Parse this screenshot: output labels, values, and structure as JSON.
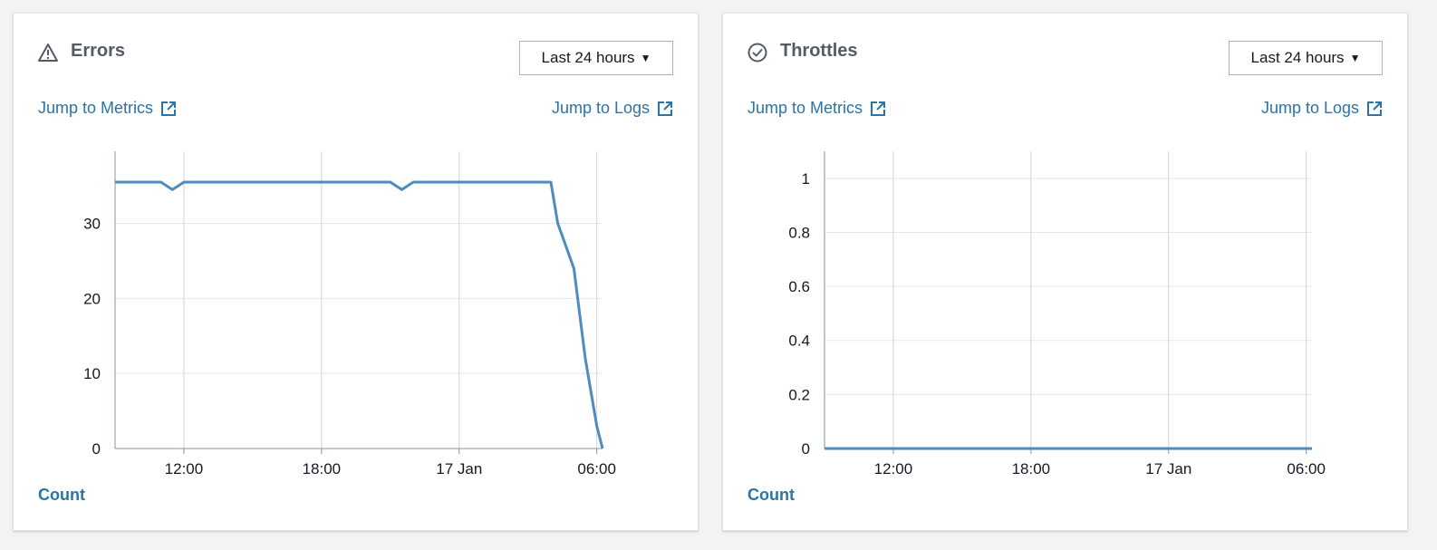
{
  "panels": [
    {
      "title": "Errors",
      "icon": "warning-icon",
      "range_label": "Last 24 hours",
      "jump_metrics": "Jump to Metrics",
      "jump_logs": "Jump to Logs",
      "legend": "Count"
    },
    {
      "title": "Throttles",
      "icon": "check-circle-icon",
      "range_label": "Last 24 hours",
      "jump_metrics": "Jump to Metrics",
      "jump_logs": "Jump to Logs",
      "legend": "Count"
    }
  ],
  "colors": {
    "line": "#4e8bbf",
    "link": "#2a74a8",
    "grid": "#cfd4d6"
  },
  "chart_data": [
    {
      "type": "line",
      "x_ticks": [
        "12:00",
        "18:00",
        "17 Jan",
        "06:00"
      ],
      "y_ticks": [
        "0",
        "10",
        "20",
        "30"
      ],
      "ylim": [
        0,
        36
      ],
      "grid": true,
      "series": [
        {
          "name": "Count",
          "x": [
            0,
            2,
            2.5,
            3,
            12,
            12.5,
            13,
            19,
            19.3,
            20,
            20.5,
            21,
            21.25
          ],
          "y": [
            35.5,
            35.5,
            34.5,
            35.5,
            35.5,
            34.5,
            35.5,
            35.5,
            30,
            24,
            12,
            3,
            0
          ]
        }
      ]
    },
    {
      "type": "line",
      "x_ticks": [
        "12:00",
        "18:00",
        "17 Jan",
        "06:00"
      ],
      "y_ticks": [
        "0",
        "0.2",
        "0.4",
        "0.6",
        "0.8",
        "1"
      ],
      "ylim": [
        0,
        1
      ],
      "grid": true,
      "series": [
        {
          "name": "Count",
          "x": [
            0,
            21.25
          ],
          "y": [
            0,
            0
          ]
        }
      ]
    }
  ]
}
